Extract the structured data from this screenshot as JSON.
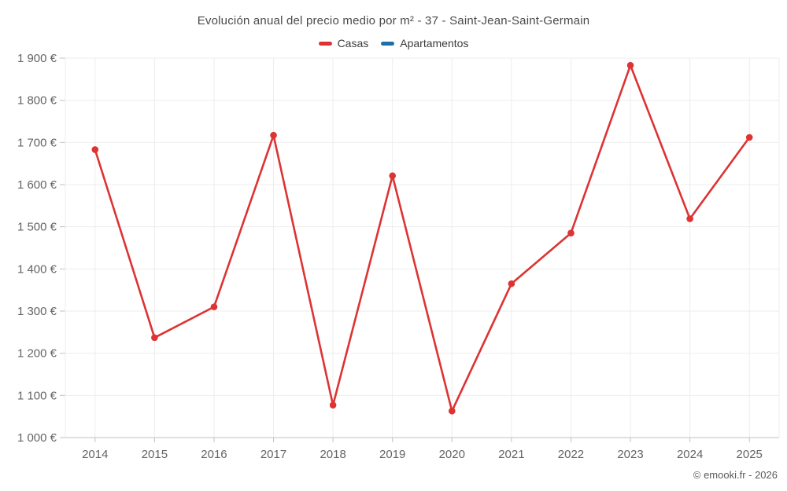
{
  "header": {
    "title": "Evolución anual del precio medio por m² - 37 - Saint-Jean-Saint-Germain"
  },
  "footer": {
    "credit": "© emooki.fr - 2026"
  },
  "chart_data": {
    "type": "line",
    "title": "Evolución anual del precio medio por m² - 37 - Saint-Jean-Saint-Germain",
    "x": [
      "2014",
      "2015",
      "2016",
      "2017",
      "2018",
      "2019",
      "2020",
      "2021",
      "2022",
      "2023",
      "2024",
      "2025"
    ],
    "series": [
      {
        "name": "Casas",
        "color": "#dd3333",
        "values": [
          1683,
          1237,
          1310,
          1717,
          1077,
          1621,
          1063,
          1365,
          1485,
          1883,
          1519,
          1712
        ]
      },
      {
        "name": "Apartamentos",
        "color": "#1a71a5",
        "values": []
      }
    ],
    "ylabel": "",
    "xlabel": "",
    "ylim": [
      1000,
      1900
    ],
    "ytick_step": 100,
    "ytick_labels": [
      "1 000 €",
      "1 100 €",
      "1 200 €",
      "1 300 €",
      "1 400 €",
      "1 500 €",
      "1 600 €",
      "1 700 €",
      "1 800 €",
      "1 900 €"
    ],
    "grid": true,
    "legend_position": "top",
    "axis_text_color": "#646464",
    "grid_color": "#ededed",
    "axis_line_color": "#c2c2c2"
  }
}
